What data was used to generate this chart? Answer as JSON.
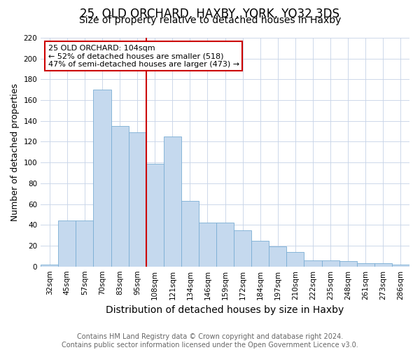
{
  "title": "25, OLD ORCHARD, HAXBY, YORK, YO32 3DS",
  "subtitle": "Size of property relative to detached houses in Haxby",
  "xlabel": "Distribution of detached houses by size in Haxby",
  "ylabel": "Number of detached properties",
  "categories": [
    "32sqm",
    "45sqm",
    "57sqm",
    "70sqm",
    "83sqm",
    "95sqm",
    "108sqm",
    "121sqm",
    "134sqm",
    "146sqm",
    "159sqm",
    "172sqm",
    "184sqm",
    "197sqm",
    "210sqm",
    "222sqm",
    "235sqm",
    "248sqm",
    "261sqm",
    "273sqm",
    "286sqm"
  ],
  "values": [
    2,
    44,
    44,
    170,
    135,
    129,
    99,
    125,
    63,
    42,
    42,
    35,
    25,
    19,
    14,
    6,
    6,
    5,
    3,
    3,
    2
  ],
  "bar_color": "#c5d9ee",
  "bar_edge_color": "#7aadd4",
  "vline_color": "#cc0000",
  "vline_index": 6,
  "annotation_text": "25 OLD ORCHARD: 104sqm\n← 52% of detached houses are smaller (518)\n47% of semi-detached houses are larger (473) →",
  "annotation_box_color": "#ffffff",
  "annotation_box_edge": "#cc0000",
  "ylim": [
    0,
    220
  ],
  "yticks": [
    0,
    20,
    40,
    60,
    80,
    100,
    120,
    140,
    160,
    180,
    200,
    220
  ],
  "footer_text": "Contains HM Land Registry data © Crown copyright and database right 2024.\nContains public sector information licensed under the Open Government Licence v3.0.",
  "title_fontsize": 12,
  "subtitle_fontsize": 10,
  "xlabel_fontsize": 10,
  "ylabel_fontsize": 9,
  "tick_fontsize": 7.5,
  "annotation_fontsize": 8,
  "footer_fontsize": 7,
  "background_color": "#ffffff",
  "grid_color": "#c8d4e8",
  "grid_alpha": 0.9
}
